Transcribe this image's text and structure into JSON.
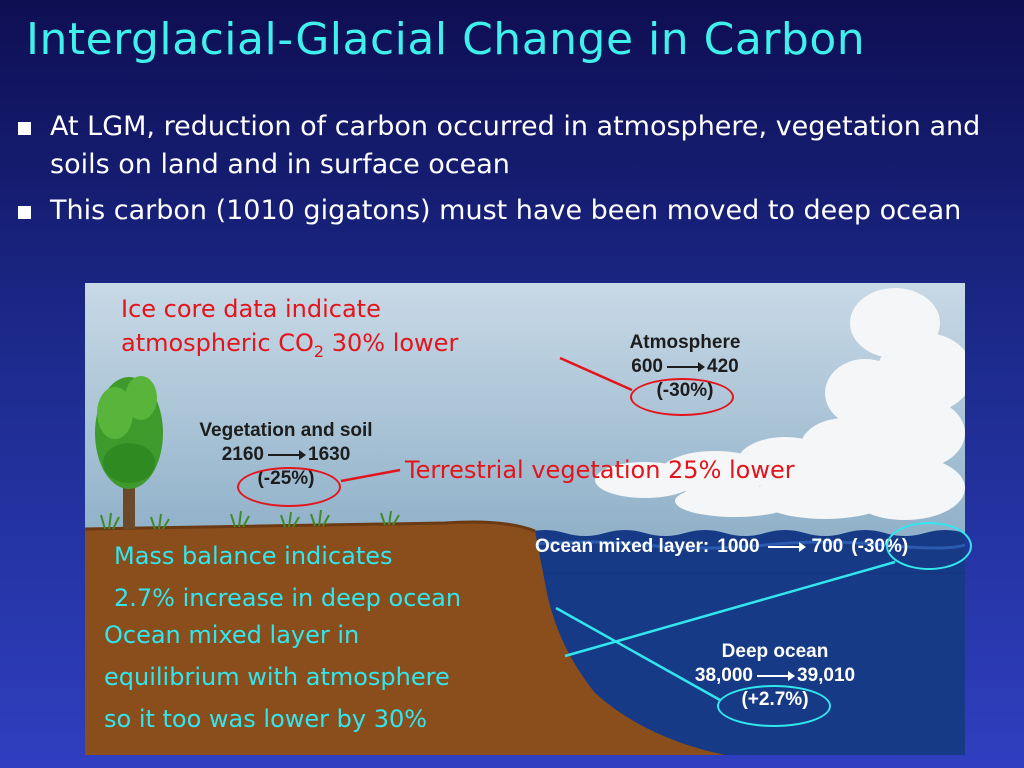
{
  "slide": {
    "title": "Interglacial-Glacial Change in Carbon",
    "bullets": [
      "At LGM, reduction of carbon occurred in atmosphere, vegetation and soils on land and in surface ocean",
      "This carbon (1010 gigatons) must have been moved to deep ocean"
    ]
  },
  "annotations": {
    "ice_core_line1": "Ice core data indicate",
    "ice_core_line2_prefix": "atmospheric CO",
    "ice_core_line2_sub": "2",
    "ice_core_line2_suffix": " 30% lower",
    "terrestrial": "Terrestrial vegetation 25% lower",
    "mass_balance_line1": "Mass balance indicates",
    "mass_balance_line2": "2.7% increase in deep ocean",
    "mixed_layer_line1": "Ocean mixed layer in",
    "mixed_layer_line2": "equilibrium with atmosphere",
    "mixed_layer_line3": "so it too was lower by 30%"
  },
  "reservoirs": {
    "atmosphere": {
      "name": "Atmosphere",
      "from": "600",
      "to": "420",
      "change": "(-30%)"
    },
    "vegetation": {
      "name": "Vegetation and soil",
      "from": "2160",
      "to": "1630",
      "change": "(-25%)"
    },
    "mixed_layer": {
      "name": "Ocean mixed layer:",
      "from": "1000",
      "to": "700",
      "change": "(-30%)"
    },
    "deep_ocean": {
      "name": "Deep ocean",
      "from": "38,000",
      "to": "39,010",
      "change": "(+2.7%)"
    }
  },
  "colors": {
    "title": "#3ff0ec",
    "red_annotation": "#e3141b",
    "cyan_annotation": "#32e6ee",
    "ocean": "#173a86",
    "land": "#8a4e1c"
  }
}
